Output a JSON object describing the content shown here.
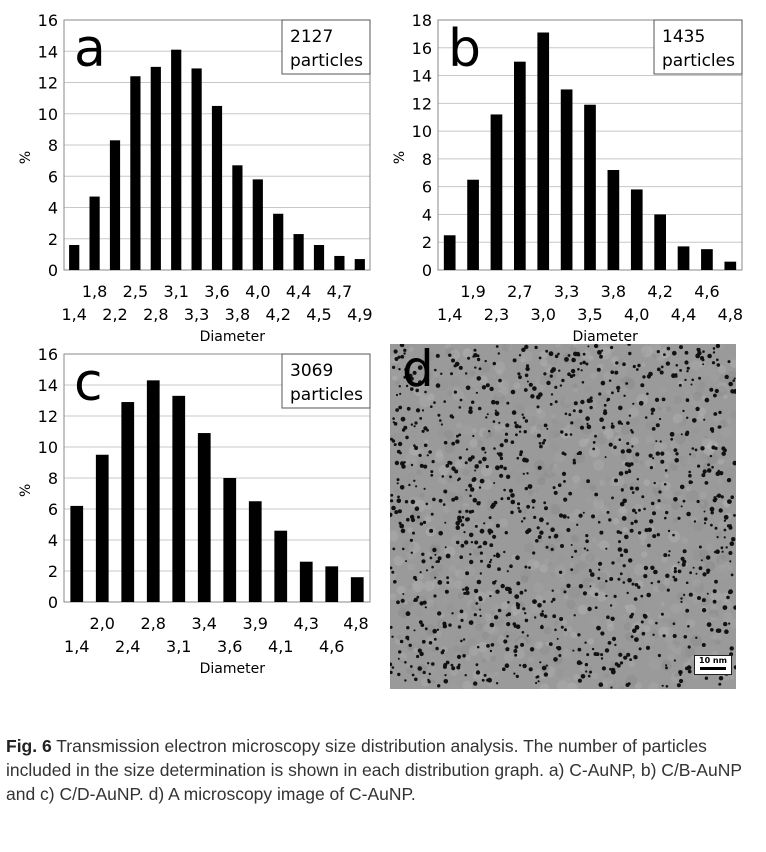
{
  "chart_data": [
    {
      "type": "bar",
      "panel_letter": "a",
      "particles_line1": "2127",
      "particles_line2": "particles",
      "ylabel": "%",
      "xlabel": "Diameter",
      "ylim": [
        0,
        16
      ],
      "yticks": [
        0,
        2,
        4,
        6,
        8,
        10,
        12,
        14,
        16
      ],
      "values": [
        1.6,
        4.7,
        8.3,
        12.4,
        13.0,
        14.1,
        12.9,
        10.5,
        6.7,
        5.8,
        3.6,
        2.3,
        1.6,
        0.9,
        0.7
      ],
      "xticks_upper": [
        "1,8",
        "2,5",
        "3,1",
        "3,6",
        "4,0",
        "4,4",
        "4,7"
      ],
      "xticks_lower": [
        "1,4",
        "2,2",
        "2,8",
        "3,3",
        "3,8",
        "4,2",
        "4,5",
        "4,9"
      ],
      "grid": true
    },
    {
      "type": "bar",
      "panel_letter": "b",
      "particles_line1": "1435",
      "particles_line2": "particles",
      "ylabel": "%",
      "xlabel": "Diameter",
      "ylim": [
        0,
        18
      ],
      "yticks": [
        0,
        2,
        4,
        6,
        8,
        10,
        12,
        14,
        16,
        18
      ],
      "values": [
        2.5,
        6.5,
        11.2,
        15.0,
        17.1,
        13.0,
        11.9,
        7.2,
        5.8,
        4.0,
        1.7,
        1.5,
        0.6
      ],
      "xticks_upper": [
        "1,9",
        "2,7",
        "3,3",
        "3,8",
        "4,2",
        "4,6"
      ],
      "xticks_lower": [
        "1,4",
        "2,3",
        "3,0",
        "3,5",
        "4,0",
        "4,4",
        "4,8"
      ],
      "grid": true
    },
    {
      "type": "bar",
      "panel_letter": "c",
      "particles_line1": "3069",
      "particles_line2": "particles",
      "ylabel": "%",
      "xlabel": "Diameter",
      "ylim": [
        0,
        16
      ],
      "yticks": [
        0,
        2,
        4,
        6,
        8,
        10,
        12,
        14,
        16
      ],
      "values": [
        6.2,
        9.5,
        12.9,
        14.3,
        13.3,
        10.9,
        8.0,
        6.5,
        4.6,
        2.6,
        2.3,
        1.6
      ],
      "xticks_upper": [
        "2,0",
        "2,8",
        "3,4",
        "3,9",
        "4,3",
        "4,8"
      ],
      "xticks_lower": [
        "1,4",
        "2,4",
        "3,1",
        "3,6",
        "4,1",
        "4,6"
      ],
      "grid": true
    }
  ],
  "tem_image": {
    "panel_letter": "d",
    "scale_label": "10 nm"
  },
  "caption": {
    "label": "Fig. 6",
    "text": " Transmission electron microscopy size distribution analysis. The number of particles included in the size determination is shown in each distribution graph. a) C-AuNP, b) C/B-AuNP and c) C/D-AuNP. d) A microscopy image of C-AuNP."
  }
}
